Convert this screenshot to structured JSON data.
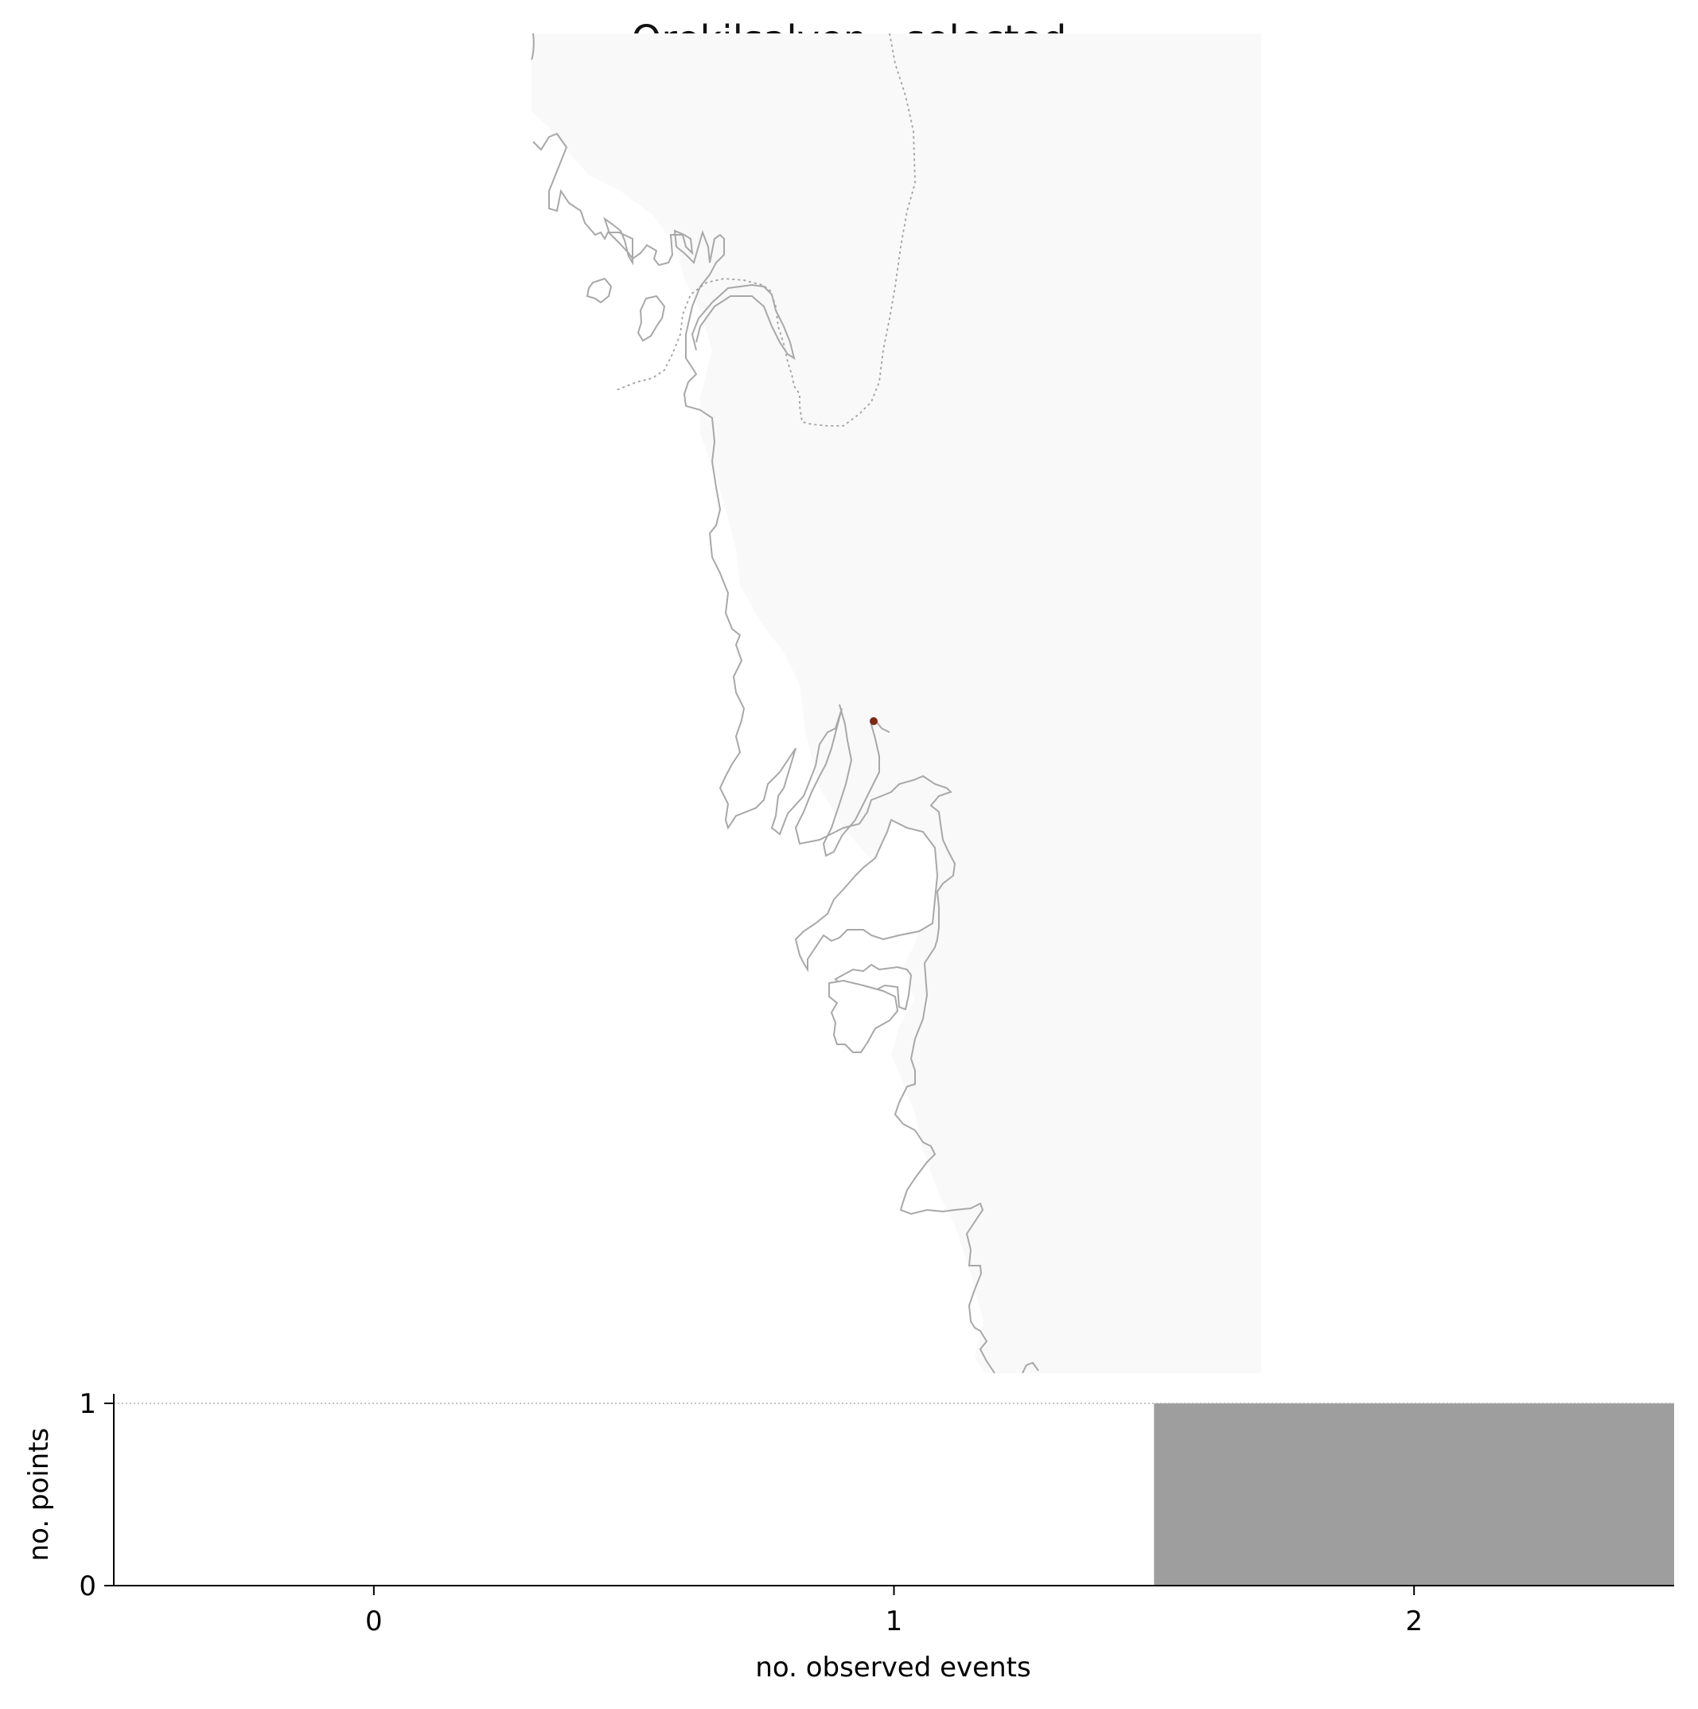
{
  "title": "Orekilsalven - selected",
  "colors": {
    "land": "#f9f9f9",
    "coastline": "#a8a8a8",
    "border": "#a0a0a0",
    "point": "#7a2a10",
    "bar": "#9e9e9e",
    "axis": "#000000"
  },
  "map": {
    "points": [
      {
        "name": "Orekilsalven",
        "lon": 11.62,
        "lat": 58.36
      }
    ]
  },
  "chart_data": {
    "type": "bar",
    "xlabel": "no. observed events",
    "ylabel": "no. points",
    "categories": [
      "0",
      "1",
      "2"
    ],
    "x": [
      0,
      1,
      2
    ],
    "values": [
      0,
      0,
      1
    ],
    "xlim": [
      -0.5,
      2.5
    ],
    "ylim": [
      0,
      1
    ],
    "xticks": [
      0,
      1,
      2
    ],
    "yticks": [
      0,
      1
    ],
    "reference_line": {
      "y": 1,
      "style": "dotted"
    },
    "grid": false,
    "legend": "none"
  }
}
